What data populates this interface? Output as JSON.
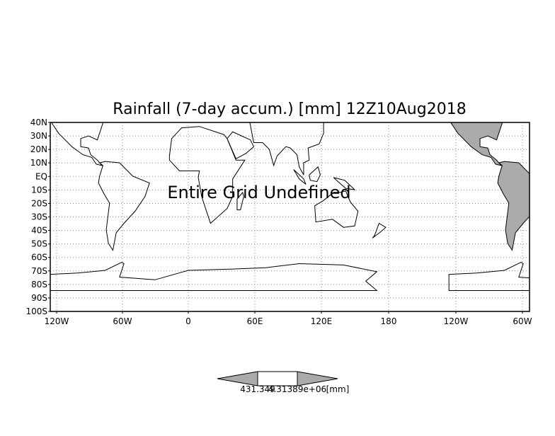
{
  "map": {
    "title": "Rainfall (7-day accum.) [mm] 12Z10Aug2018",
    "annotation": "Entire Grid Undefined",
    "lat_labels": [
      "40N",
      "30N",
      "20N",
      "10N",
      "EQ",
      "10S",
      "20S",
      "30S",
      "40S",
      "50S",
      "60S",
      "70S",
      "80S",
      "90S",
      "100S"
    ],
    "lon_labels": [
      "120W",
      "60W",
      "0",
      "60E",
      "120E",
      "180",
      "120W",
      "60W"
    ],
    "colorbar_labels": [
      "431.349",
      "4.31389e+06",
      "[mm]"
    ]
  }
}
